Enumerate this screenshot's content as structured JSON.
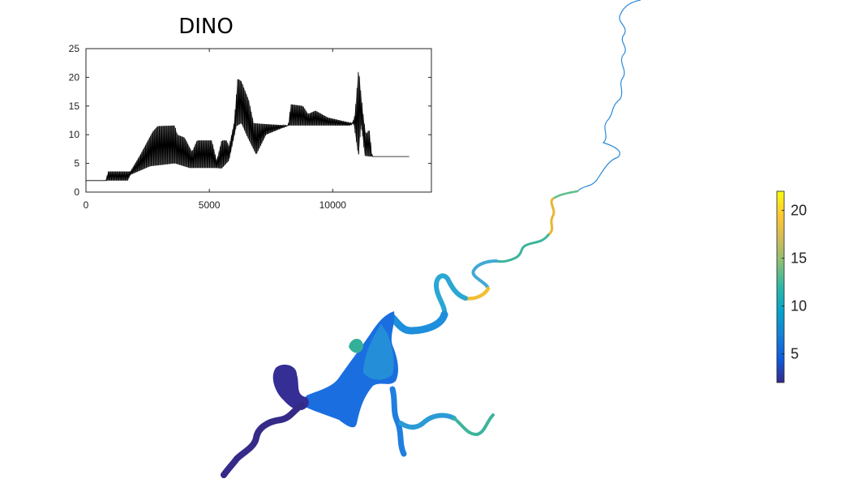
{
  "chart_data": [
    {
      "type": "line",
      "title": "DINO",
      "xlabel": "",
      "ylabel": "",
      "xlim": [
        0,
        14000
      ],
      "ylim": [
        0,
        25
      ],
      "x_ticks": [
        "0",
        "5000",
        "10000"
      ],
      "y_ticks": [
        "0",
        "5",
        "10",
        "15",
        "20",
        "25"
      ],
      "grid": false,
      "series": [
        {
          "color": "#000000",
          "envelope_upper": [
            [
              0,
              2
            ],
            [
              800,
              2
            ],
            [
              900,
              3.6
            ],
            [
              1800,
              3.6
            ],
            [
              2200,
              6.5
            ],
            [
              2700,
              10.5
            ],
            [
              2900,
              11.5
            ],
            [
              3600,
              11.6
            ],
            [
              3700,
              10
            ],
            [
              4000,
              9.5
            ],
            [
              4300,
              7
            ],
            [
              4500,
              9
            ],
            [
              5100,
              9
            ],
            [
              5300,
              5.5
            ],
            [
              5500,
              9
            ],
            [
              5700,
              9
            ],
            [
              5800,
              8
            ],
            [
              6000,
              12
            ],
            [
              6150,
              19.8
            ],
            [
              6300,
              19.3
            ],
            [
              6600,
              16
            ],
            [
              6800,
              12
            ],
            [
              8200,
              11.6
            ],
            [
              8300,
              15.3
            ],
            [
              8800,
              15
            ],
            [
              9000,
              13.6
            ],
            [
              9300,
              14.2
            ],
            [
              9800,
              13
            ],
            [
              10800,
              12
            ],
            [
              10900,
              13.5
            ],
            [
              11050,
              21.8
            ],
            [
              11150,
              17
            ],
            [
              11250,
              13
            ],
            [
              11350,
              10
            ],
            [
              11480,
              11
            ],
            [
              11600,
              6.2
            ],
            [
              13100,
              6.2
            ]
          ],
          "envelope_lower": [
            [
              0,
              2
            ],
            [
              800,
              2
            ],
            [
              1700,
              2
            ],
            [
              1800,
              3
            ],
            [
              2600,
              4.5
            ],
            [
              3600,
              5
            ],
            [
              4200,
              4.2
            ],
            [
              5300,
              4.2
            ],
            [
              5500,
              4.1
            ],
            [
              5800,
              5.5
            ],
            [
              6100,
              11.5
            ],
            [
              6300,
              12
            ],
            [
              6500,
              10
            ],
            [
              6900,
              6.5
            ],
            [
              7300,
              10
            ],
            [
              8200,
              11.6
            ],
            [
              8300,
              11.6
            ],
            [
              10700,
              11.6
            ],
            [
              10850,
              12
            ],
            [
              10950,
              9
            ],
            [
              11050,
              6
            ],
            [
              11150,
              12
            ],
            [
              11300,
              6.3
            ],
            [
              11500,
              6.2
            ],
            [
              13100,
              6.2
            ]
          ]
        }
      ]
    },
    {
      "type": "heatmap",
      "colormap": "parula",
      "colorbar_range": [
        2,
        22
      ],
      "colorbar_ticks": [
        "5",
        "10",
        "15",
        "20"
      ],
      "colormap_stops": [
        "#352a87",
        "#0f5cdd",
        "#1481d6",
        "#06a4ca",
        "#2eb7a4",
        "#87bf77",
        "#d1bb59",
        "#fec832",
        "#f9fb0e"
      ]
    }
  ]
}
